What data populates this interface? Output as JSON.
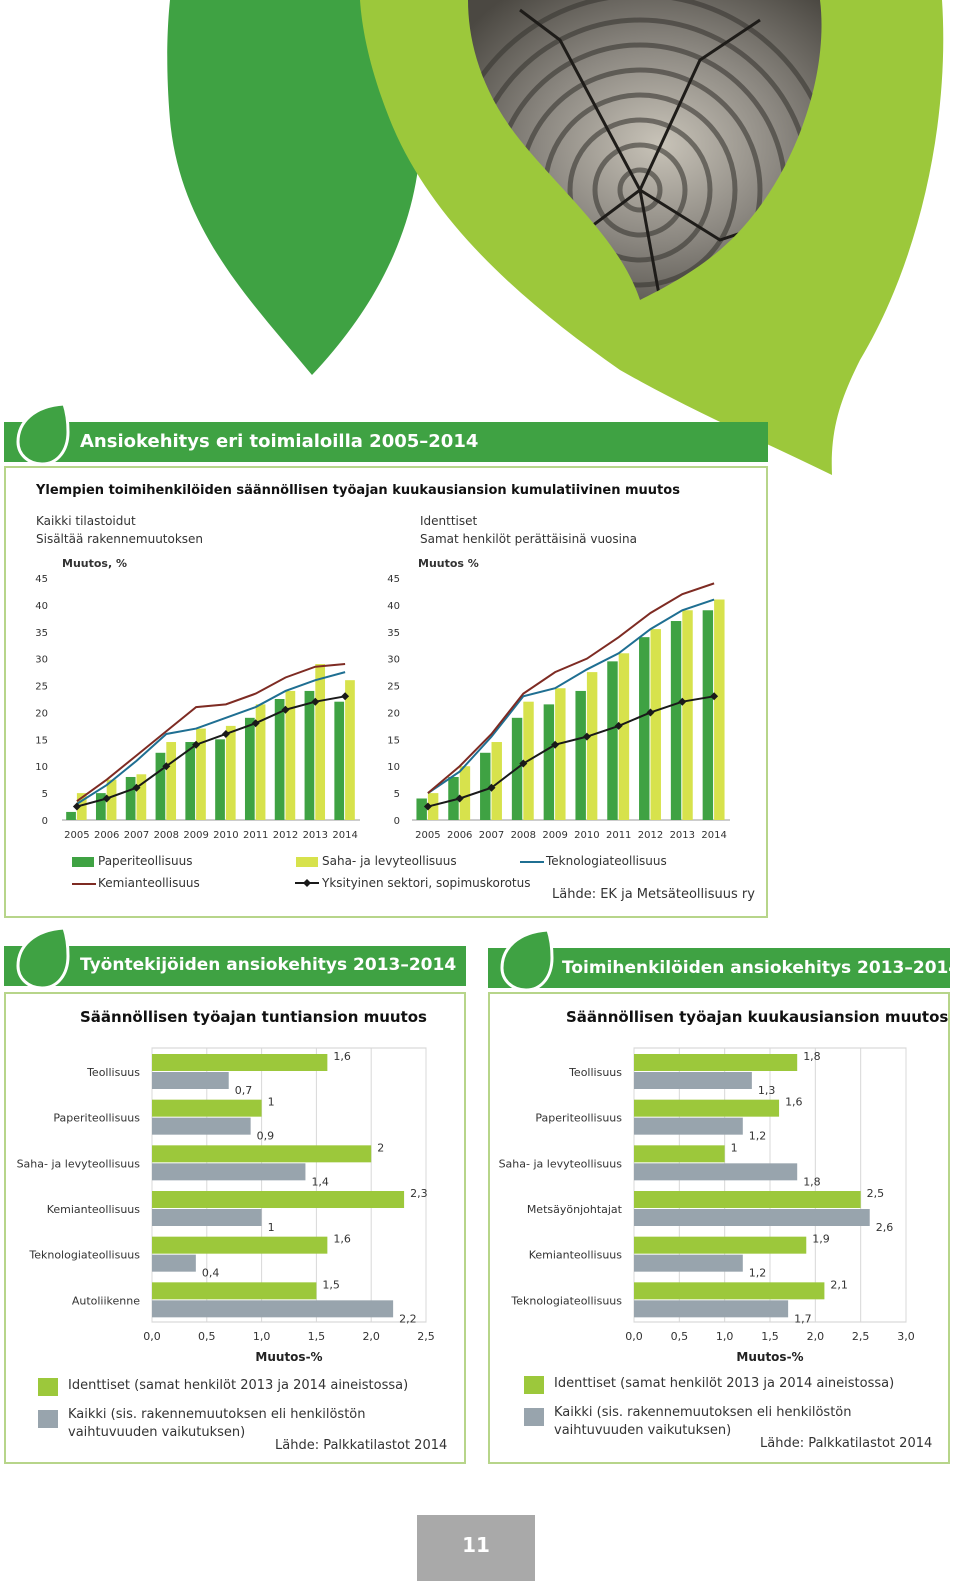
{
  "colors": {
    "dark_green": "#3fa243",
    "light_green": "#9cc83b",
    "yellow_green": "#d7e24c",
    "blue": "#1f6f92",
    "dark_red": "#7e2b23",
    "black": "#1a1a1a",
    "gray": "#98a4ad",
    "panel_border": "#b7d58a"
  },
  "top": {
    "banner_title": "Ansiokehitys eri toimialoilla 2005–2014",
    "subtitle": "Ylempien toimihenkilöiden säännöllisen työajan kuukausiansion kumulatiivinen muutos",
    "left_note_1": "Kaikki tilastoidut",
    "left_note_2": "Sisältää rakennemuutoksen",
    "right_note_1": "Identtiset",
    "right_note_2": "Samat henkilöt perättäisinä vuosina",
    "left_axis_title": "Muutos, %",
    "right_axis_title": "Muutos %",
    "legend": {
      "paper": "Paperiteollisuus",
      "saw": "Saha- ja levyteollisuus",
      "tech": "Teknologiateollisuus",
      "chem": "Kemianteollisuus",
      "private": "Yksityinen sektori, sopimuskorotus"
    },
    "source": "Lähde: EK ja Metsäteollisuus ry"
  },
  "workers": {
    "banner_title": "Työntekijöiden ansiokehitys 2013–2014",
    "chart_title": "Säännöllisen työajan tuntiansion muutos",
    "xlabel": "Muutos-%",
    "legend_identical": "Identtiset (samat henkilöt 2013 ja 2014 aineistossa)",
    "legend_all": "Kaikki (sis. rakennemuutoksen eli henkilöstön vaihtuvuuden vaikutuksen)",
    "source": "Lähde: Palkkatilastot 2014"
  },
  "officials": {
    "banner_title": "Toimihenkilöiden ansiokehitys 2013–2014",
    "chart_title": "Säännöllisen työajan kuukausiansion muutos",
    "xlabel": "Muutos-%",
    "legend_identical": "Identtiset (samat henkilöt 2013 ja 2014 aineistossa)",
    "legend_all": "Kaikki (sis. rakennemuutoksen eli henkilöstön vaihtuvuuden vaikutuksen)",
    "source": "Lähde: Palkkatilastot 2014"
  },
  "page_number": "11",
  "chart_data": [
    {
      "type": "bar",
      "ylim": [
        0,
        45
      ],
      "yticks": [
        "0",
        "5",
        "10",
        "15",
        "20",
        "25",
        "30",
        "35",
        "40",
        "45"
      ],
      "categories": [
        "2005",
        "2006",
        "2007",
        "2008",
        "2009",
        "2010",
        "2011",
        "2012",
        "2013",
        "2014"
      ],
      "series": [
        {
          "name": "Paperiteollisuus",
          "kind": "bar",
          "values": [
            1.5,
            5,
            8,
            12.5,
            14.5,
            15,
            19,
            22.5,
            24,
            22
          ]
        },
        {
          "name": "Saha- ja levyteollisuus",
          "kind": "bar",
          "values": [
            5,
            7.5,
            8.5,
            14.5,
            17,
            17.5,
            21.5,
            24,
            29,
            26
          ]
        },
        {
          "name": "Teknologiateollisuus",
          "kind": "line",
          "values": [
            3,
            6.5,
            11,
            16,
            17,
            19,
            21,
            24,
            26,
            27.5
          ]
        },
        {
          "name": "Kemianteollisuus",
          "kind": "line",
          "values": [
            3.5,
            7.5,
            12,
            16.5,
            21,
            21.5,
            23.5,
            26.5,
            28.5,
            29
          ]
        },
        {
          "name": "Yksityinen sektori, sopimuskorotus",
          "kind": "line",
          "values": [
            2.5,
            4,
            6,
            10,
            14,
            16,
            18,
            20.5,
            22,
            23
          ]
        }
      ]
    },
    {
      "type": "bar",
      "ylim": [
        0,
        45
      ],
      "yticks": [
        "0",
        "5",
        "10",
        "15",
        "20",
        "25",
        "30",
        "35",
        "40",
        "45"
      ],
      "categories": [
        "2005",
        "2006",
        "2007",
        "2008",
        "2009",
        "2010",
        "2011",
        "2012",
        "2013",
        "2014"
      ],
      "series": [
        {
          "name": "Paperiteollisuus",
          "kind": "bar",
          "values": [
            4,
            8,
            12.5,
            19,
            21.5,
            24,
            29.5,
            34,
            37,
            39
          ]
        },
        {
          "name": "Saha- ja levyteollisuus",
          "kind": "bar",
          "values": [
            5,
            10,
            14.5,
            22,
            24.5,
            27.5,
            31,
            35.5,
            39,
            41
          ]
        },
        {
          "name": "Teknologiateollisuus",
          "kind": "line",
          "values": [
            5,
            9,
            15.5,
            23,
            24.5,
            28,
            31,
            35.5,
            39,
            41
          ]
        },
        {
          "name": "Kemianteollisuus",
          "kind": "line",
          "values": [
            5,
            10,
            16,
            23.5,
            27.5,
            30,
            34,
            38.5,
            42,
            44
          ]
        },
        {
          "name": "Yksityinen sektori, sopimuskorotus",
          "kind": "line",
          "values": [
            2.5,
            4,
            6,
            10.5,
            14,
            15.5,
            17.5,
            20,
            22,
            23
          ]
        }
      ]
    },
    {
      "type": "bar",
      "orientation": "horizontal",
      "title": "Säännöllisen työajan tuntiansion muutos",
      "xlabel": "Muutos-%",
      "xlim": [
        0,
        2.5
      ],
      "xticks": [
        "0,0",
        "0,5",
        "1,0",
        "1,5",
        "2,0",
        "2,5"
      ],
      "categories": [
        "Teollisuus",
        "Paperiteollisuus",
        "Saha- ja levyteollisuus",
        "Kemianteollisuus",
        "Teknologiateollisuus",
        "Autoliikenne"
      ],
      "series": [
        {
          "name": "Identtiset (samat henkilöt 2013 ja 2014 aineistossa)",
          "values": [
            1.6,
            1.0,
            2.0,
            2.3,
            1.6,
            1.5
          ],
          "labels": [
            "1,6",
            "1",
            "2",
            "2,3",
            "1,6",
            "1,5"
          ]
        },
        {
          "name": "Kaikki (sis. rakennemuutoksen eli henkilöstön vaihtuvuuden vaikutuksen)",
          "values": [
            0.7,
            0.9,
            1.4,
            1.0,
            0.4,
            2.2
          ],
          "labels": [
            "0,7",
            "0,9",
            "1,4",
            "1",
            "0,4",
            "2,2"
          ]
        }
      ]
    },
    {
      "type": "bar",
      "orientation": "horizontal",
      "title": "Säännöllisen työajan kuukausiansion muutos",
      "xlabel": "Muutos-%",
      "xlim": [
        0,
        3.0
      ],
      "xticks": [
        "0,0",
        "0,5",
        "1,0",
        "1,5",
        "2,0",
        "2,5",
        "3,0"
      ],
      "categories": [
        "Teollisuus",
        "Paperiteollisuus",
        "Saha- ja levyteollisuus",
        "Metsäyönjohtajat",
        "Kemianteollisuus",
        "Teknologiateollisuus"
      ],
      "series": [
        {
          "name": "Identtiset (samat henkilöt 2013 ja 2014 aineistossa)",
          "values": [
            1.8,
            1.6,
            1.0,
            2.5,
            1.9,
            2.1
          ],
          "labels": [
            "1,8",
            "1,6",
            "1",
            "2,5",
            "1,9",
            "2,1"
          ]
        },
        {
          "name": "Kaikki (sis. rakennemuutoksen eli henkilöstön vaihtuvuuden vaikutuksen)",
          "values": [
            1.3,
            1.2,
            1.8,
            2.6,
            1.2,
            1.7
          ],
          "labels": [
            "1,3",
            "1,2",
            "1,8",
            "2,6",
            "1,2",
            "1,7"
          ]
        }
      ]
    }
  ]
}
